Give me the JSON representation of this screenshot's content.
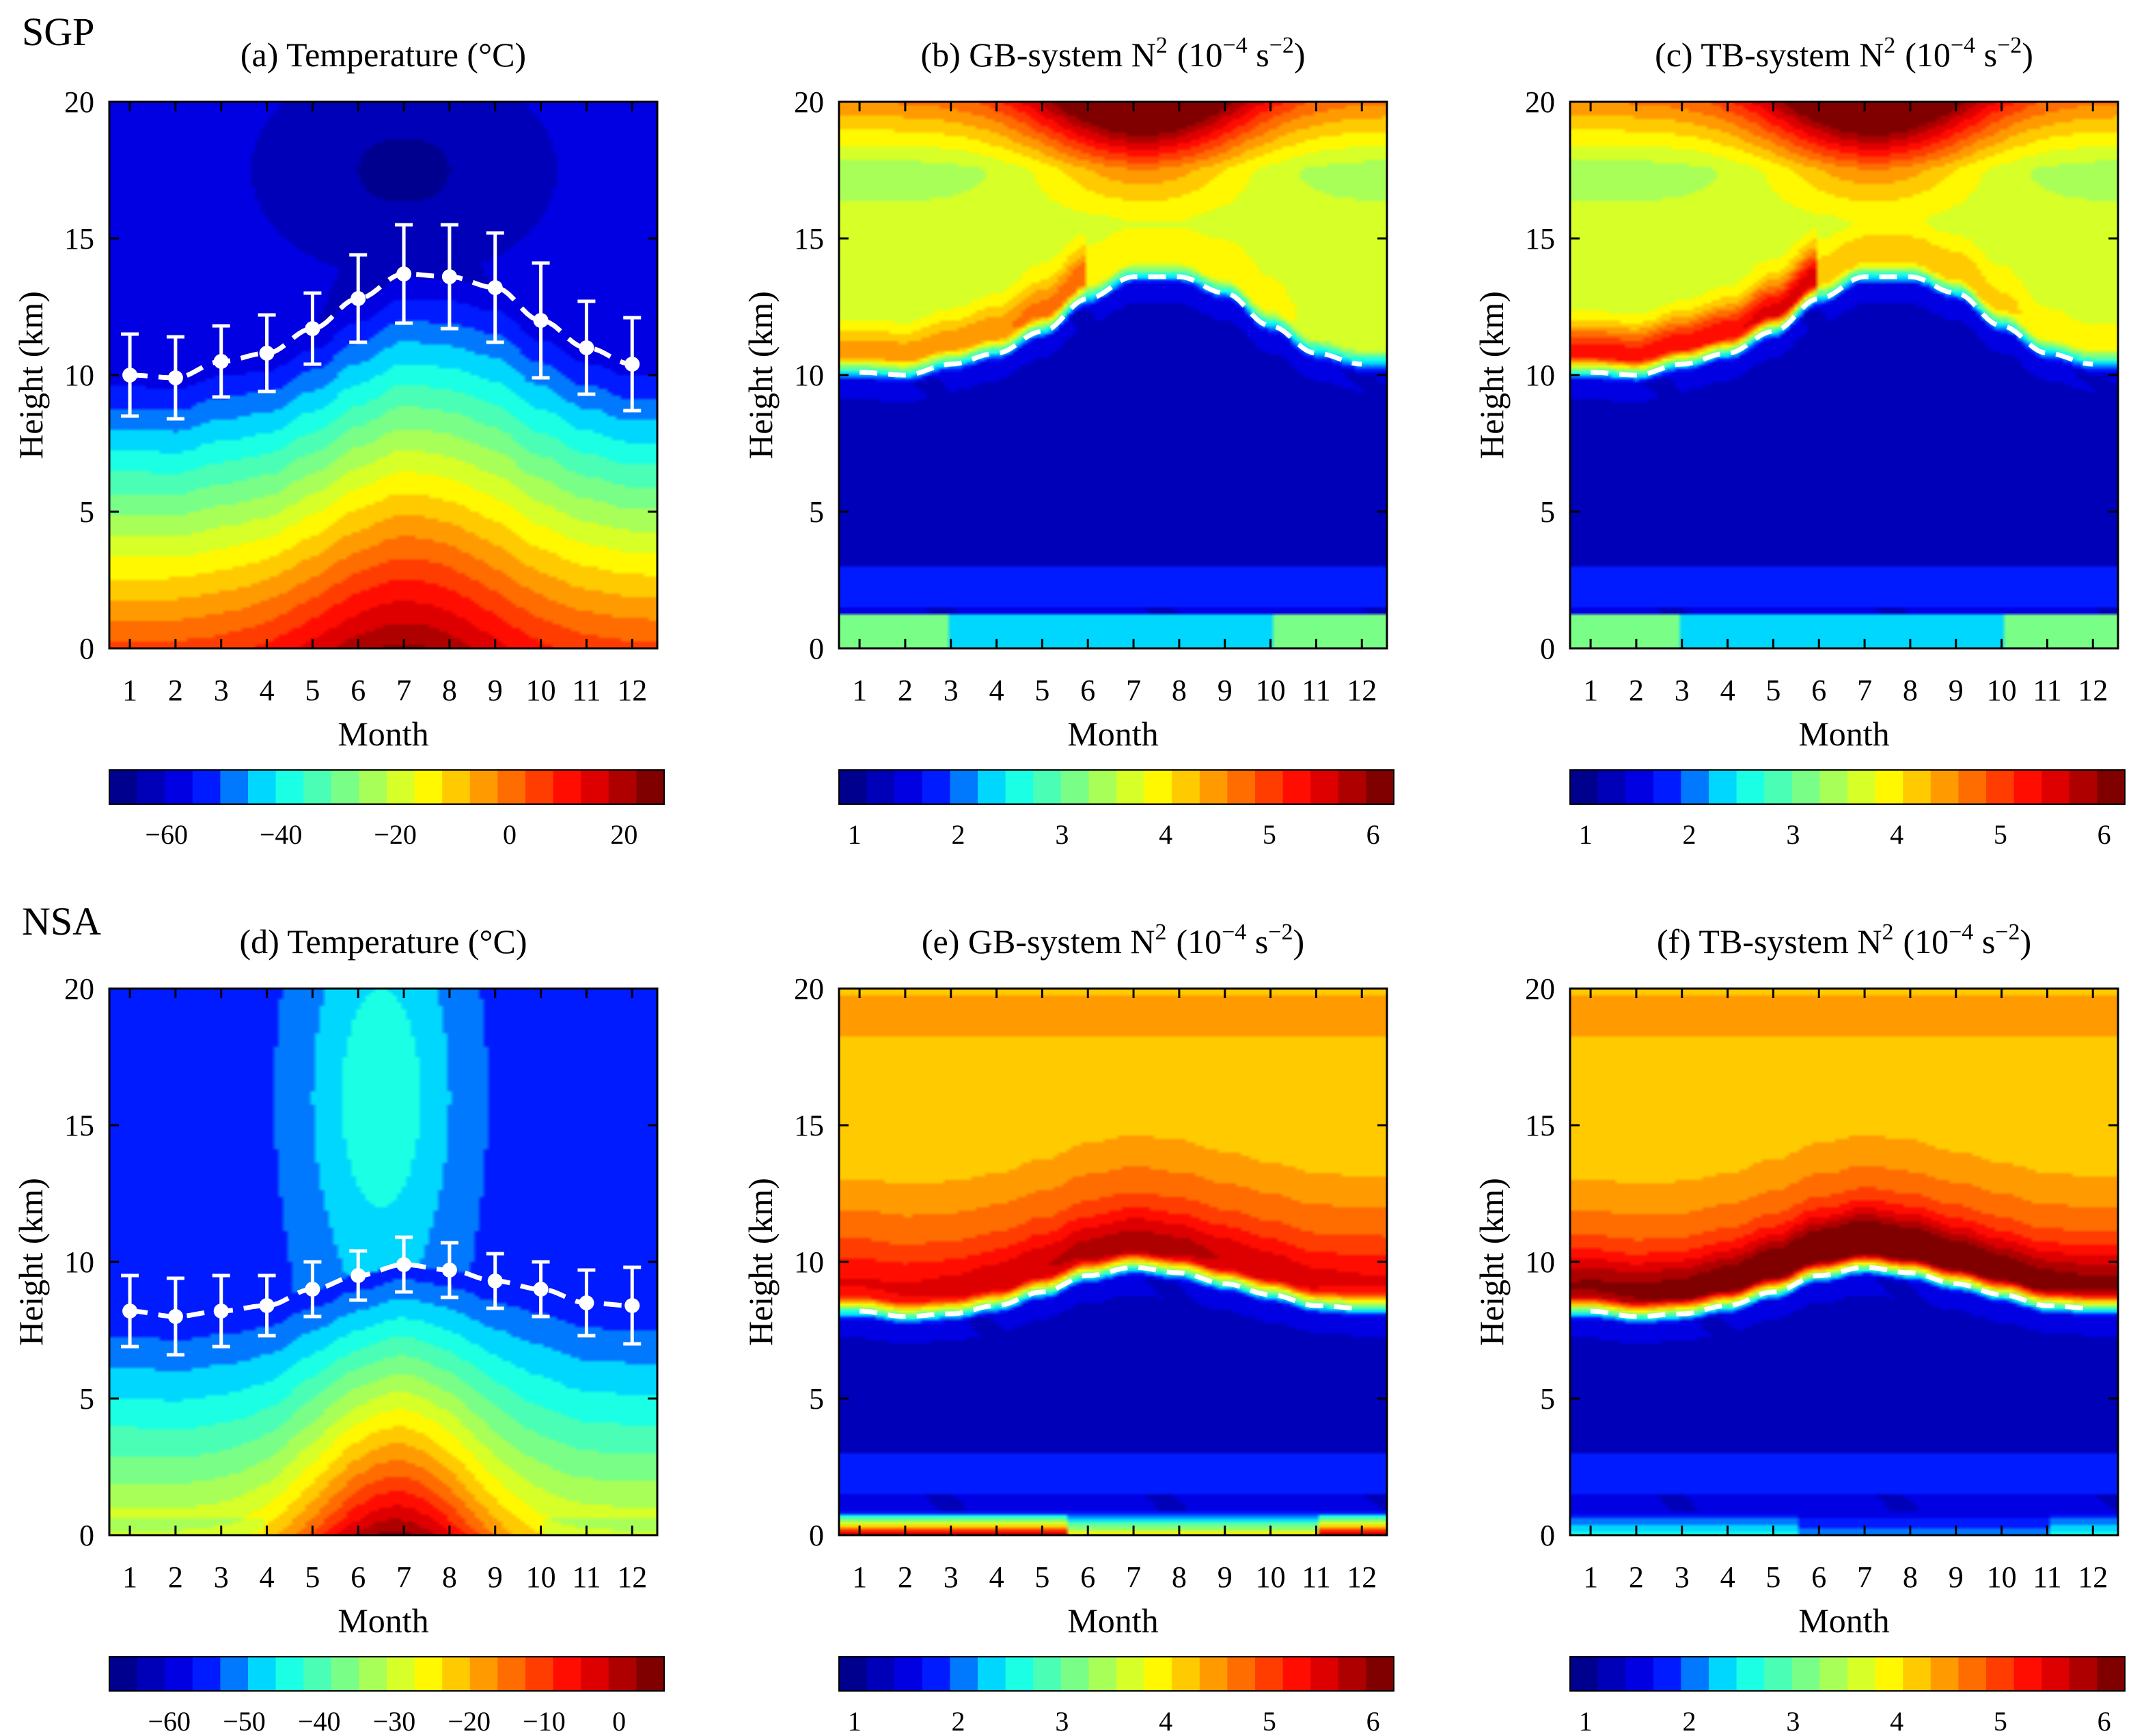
{
  "rows": [
    {
      "label": "SGP",
      "panels": [
        {
          "kind": "temperature",
          "letter": "(a)",
          "title_main": "Temperature (°C)",
          "cbar_ticks": [
            "−60",
            "−40",
            "−20",
            "0",
            "20"
          ],
          "cbar_values": [
            -60,
            -40,
            -20,
            0,
            20
          ],
          "vmin": -70,
          "vmax": 27,
          "tropo": [
            10.0,
            9.9,
            10.5,
            10.8,
            11.7,
            12.8,
            13.7,
            13.6,
            13.2,
            12.0,
            11.0,
            10.4
          ],
          "err": [
            1.5,
            1.5,
            1.3,
            1.4,
            1.3,
            1.6,
            1.8,
            1.9,
            2.0,
            2.1,
            1.7,
            1.7
          ]
        },
        {
          "kind": "n2",
          "letter": "(b)",
          "title_main": "GB-system N",
          "title_sup1": "2",
          "title_unit": "(10",
          "title_sup2": "−4",
          "title_unit2": " s",
          "title_sup3": "−2",
          "title_close": ")",
          "cbar_ticks": [
            "1",
            "2",
            "3",
            "4",
            "5",
            "6"
          ],
          "cbar_values": [
            1,
            2,
            3,
            4,
            5,
            6
          ],
          "vmin": 0.85,
          "vmax": 6.2,
          "tropo": [
            10.1,
            10.0,
            10.4,
            10.8,
            11.6,
            12.8,
            13.6,
            13.6,
            13.0,
            11.8,
            10.8,
            10.4
          ]
        },
        {
          "kind": "n2",
          "letter": "(c)",
          "title_main": "TB-system N",
          "title_sup1": "2",
          "title_unit": "(10",
          "title_sup2": "−4",
          "title_unit2": " s",
          "title_sup3": "−2",
          "title_close": ")",
          "cbar_ticks": [
            "1",
            "2",
            "3",
            "4",
            "5",
            "6"
          ],
          "cbar_values": [
            1,
            2,
            3,
            4,
            5,
            6
          ],
          "vmin": 0.85,
          "vmax": 6.2,
          "tropo": [
            10.1,
            10.0,
            10.4,
            10.8,
            11.6,
            12.8,
            13.6,
            13.6,
            13.0,
            11.8,
            10.8,
            10.4
          ]
        }
      ]
    },
    {
      "label": "NSA",
      "panels": [
        {
          "kind": "temperature",
          "letter": "(d)",
          "title_main": "Temperature (°C)",
          "cbar_ticks": [
            "−60",
            "−50",
            "−40",
            "−30",
            "−20",
            "−10",
            "0"
          ],
          "cbar_values": [
            -60,
            -50,
            -40,
            -30,
            -20,
            -10,
            0
          ],
          "vmin": -68,
          "vmax": 6,
          "tropo": [
            8.2,
            8.0,
            8.2,
            8.4,
            9.0,
            9.5,
            9.9,
            9.7,
            9.3,
            9.0,
            8.5,
            8.4
          ],
          "err": [
            1.3,
            1.4,
            1.3,
            1.1,
            1.0,
            0.9,
            1.0,
            1.0,
            1.0,
            1.0,
            1.2,
            1.4
          ]
        },
        {
          "kind": "n2",
          "letter": "(e)",
          "title_main": "GB-system N",
          "title_sup1": "2",
          "title_unit": "(10",
          "title_sup2": "−4",
          "title_unit2": " s",
          "title_sup3": "−2",
          "title_close": ")",
          "cbar_ticks": [
            "1",
            "2",
            "3",
            "4",
            "5",
            "6"
          ],
          "cbar_values": [
            1,
            2,
            3,
            4,
            5,
            6
          ],
          "vmin": 0.85,
          "vmax": 6.2,
          "tropo": [
            8.2,
            8.0,
            8.1,
            8.4,
            8.9,
            9.5,
            9.8,
            9.6,
            9.2,
            8.8,
            8.4,
            8.3
          ]
        },
        {
          "kind": "n2",
          "letter": "(f)",
          "title_main": "TB-system N",
          "title_sup1": "2",
          "title_unit": "(10",
          "title_sup2": "−4",
          "title_unit2": " s",
          "title_sup3": "−2",
          "title_close": ")",
          "cbar_ticks": [
            "1",
            "2",
            "3",
            "4",
            "5",
            "6"
          ],
          "cbar_values": [
            1,
            2,
            3,
            4,
            5,
            6
          ],
          "vmin": 0.85,
          "vmax": 6.2,
          "tropo": [
            8.2,
            8.0,
            8.1,
            8.4,
            8.9,
            9.5,
            9.8,
            9.6,
            9.2,
            8.8,
            8.4,
            8.3
          ]
        }
      ]
    }
  ],
  "axes": {
    "ylabel": "Height (km)",
    "xlabel": "Month",
    "xticks": [
      "1",
      "2",
      "3",
      "4",
      "5",
      "6",
      "7",
      "8",
      "9",
      "10",
      "11",
      "12"
    ],
    "yticks": [
      "0",
      "5",
      "10",
      "15",
      "20"
    ],
    "ylim": [
      0,
      20
    ],
    "xlim": [
      0.55,
      12.55
    ]
  },
  "chart_data": [
    {
      "type": "heatmap",
      "title": "(a) Temperature (°C)",
      "site": "SGP",
      "xlabel": "Month",
      "ylabel": "Height (km)",
      "ylim": [
        0,
        20
      ],
      "colorbar_range": [
        -70,
        27
      ],
      "tropopause_height_km": [
        10.0,
        9.9,
        10.5,
        10.8,
        11.7,
        12.8,
        13.7,
        13.6,
        13.2,
        12.0,
        11.0,
        10.4
      ]
    },
    {
      "type": "heatmap",
      "title": "(b) GB-system N^2 (10^-4 s^-2)",
      "site": "SGP",
      "xlabel": "Month",
      "ylabel": "Height (km)",
      "ylim": [
        0,
        20
      ],
      "colorbar_range": [
        0.85,
        6.2
      ],
      "tropopause_height_km": [
        10.1,
        10.0,
        10.4,
        10.8,
        11.6,
        12.8,
        13.6,
        13.6,
        13.0,
        11.8,
        10.8,
        10.4
      ]
    },
    {
      "type": "heatmap",
      "title": "(c) TB-system N^2 (10^-4 s^-2)",
      "site": "SGP",
      "xlabel": "Month",
      "ylabel": "Height (km)",
      "ylim": [
        0,
        20
      ],
      "colorbar_range": [
        0.85,
        6.2
      ],
      "tropopause_height_km": [
        10.1,
        10.0,
        10.4,
        10.8,
        11.6,
        12.8,
        13.6,
        13.6,
        13.0,
        11.8,
        10.8,
        10.4
      ]
    },
    {
      "type": "heatmap",
      "title": "(d) Temperature (°C)",
      "site": "NSA",
      "xlabel": "Month",
      "ylabel": "Height (km)",
      "ylim": [
        0,
        20
      ],
      "colorbar_range": [
        -68,
        6
      ],
      "tropopause_height_km": [
        8.2,
        8.0,
        8.2,
        8.4,
        9.0,
        9.5,
        9.9,
        9.7,
        9.3,
        9.0,
        8.5,
        8.4
      ]
    },
    {
      "type": "heatmap",
      "title": "(e) GB-system N^2 (10^-4 s^-2)",
      "site": "NSA",
      "xlabel": "Month",
      "ylabel": "Height (km)",
      "ylim": [
        0,
        20
      ],
      "colorbar_range": [
        0.85,
        6.2
      ],
      "tropopause_height_km": [
        8.2,
        8.0,
        8.1,
        8.4,
        8.9,
        9.5,
        9.8,
        9.6,
        9.2,
        8.8,
        8.4,
        8.3
      ]
    },
    {
      "type": "heatmap",
      "title": "(f) TB-system N^2 (10^-4 s^-2)",
      "site": "NSA",
      "xlabel": "Month",
      "ylabel": "Height (km)",
      "ylim": [
        0,
        20
      ],
      "colorbar_range": [
        0.85,
        6.2
      ],
      "tropopause_height_km": [
        8.2,
        8.0,
        8.1,
        8.4,
        8.9,
        9.5,
        9.8,
        9.6,
        9.2,
        8.8,
        8.4,
        8.3
      ]
    }
  ],
  "colors": {
    "jet": [
      "#00008f",
      "#0000ff",
      "#00ffff",
      "#80ff80",
      "#ffff00",
      "#ff8000",
      "#ff0000",
      "#800000"
    ],
    "tropopause_line": "#ffffff",
    "axis": "#000000"
  }
}
